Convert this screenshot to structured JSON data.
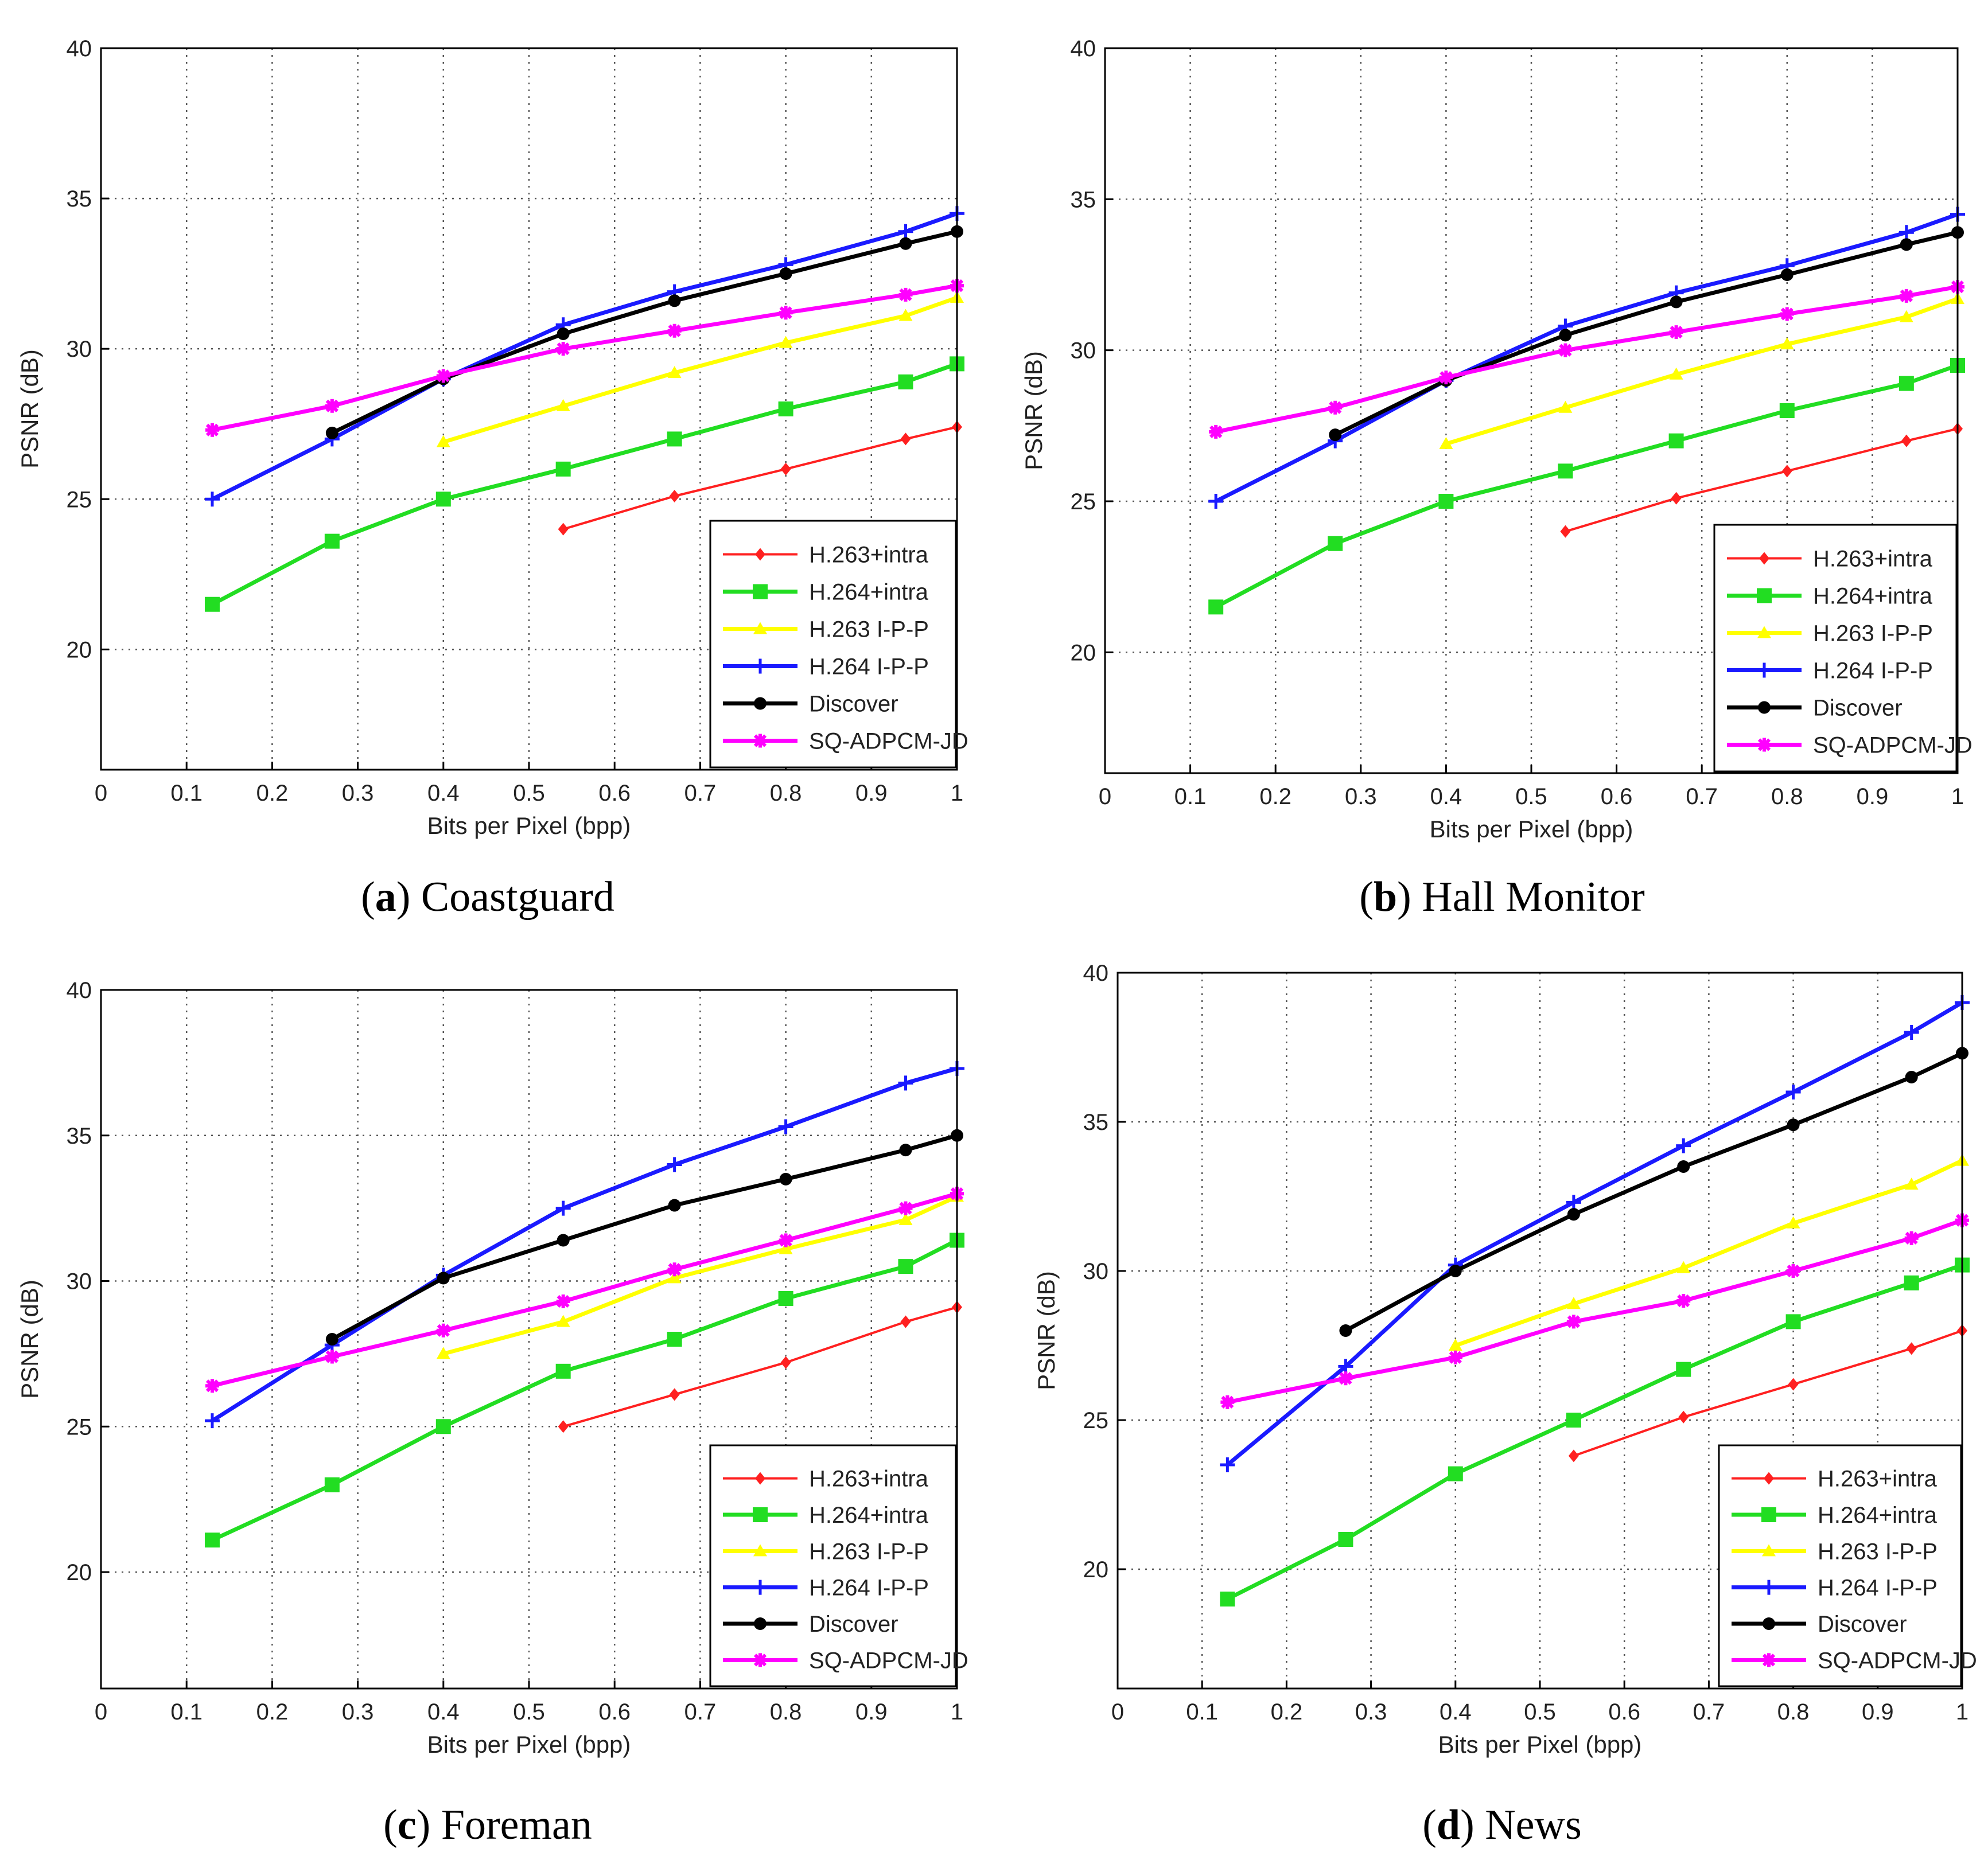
{
  "figure": {
    "x_axis_label": "Bits per Pixel (bpp)",
    "y_axis_label": "PSNR (dB)"
  },
  "legend_entries": [
    {
      "name": "H.263+intra",
      "color": "#ff2020",
      "marker": "diamond"
    },
    {
      "name": "H.264+intra",
      "color": "#22dd22",
      "marker": "square"
    },
    {
      "name": "H.263 I-P-P",
      "color": "#ffff00",
      "marker": "triangle"
    },
    {
      "name": "H.264 I-P-P",
      "color": "#1a1aff",
      "marker": "plus"
    },
    {
      "name": "Discover",
      "color": "#000000",
      "marker": "circle"
    },
    {
      "name": "SQ-ADPCM-JD",
      "color": "#ff00ff",
      "marker": "star"
    }
  ],
  "chart_data": [
    {
      "type": "line",
      "panel_letter": "a",
      "title": "Coastguard",
      "xlabel": "Bits per Pixel (bpp)",
      "ylabel": "PSNR (dB)",
      "xlim": [
        0,
        1
      ],
      "ylim": [
        16,
        40
      ],
      "xticks": [
        "0",
        "0.1",
        "0.2",
        "0.3",
        "0.4",
        "0.5",
        "0.6",
        "0.7",
        "0.8",
        "0.9",
        "1"
      ],
      "yticks": [
        "20",
        "25",
        "30",
        "35",
        "40"
      ],
      "grid": true,
      "legend_position": "bottom-right",
      "series": [
        {
          "name": "H.263+intra",
          "x": [
            0.54,
            0.67,
            0.8,
            0.94,
            1.0
          ],
          "y": [
            24.0,
            25.1,
            26.0,
            27.0,
            27.4
          ]
        },
        {
          "name": "H.264+intra",
          "x": [
            0.13,
            0.27,
            0.4,
            0.54,
            0.67,
            0.8,
            0.94,
            1.0
          ],
          "y": [
            21.5,
            23.6,
            25.0,
            26.0,
            27.0,
            28.0,
            28.9,
            29.5
          ]
        },
        {
          "name": "H.263 I-P-P",
          "x": [
            0.4,
            0.54,
            0.67,
            0.8,
            0.94,
            1.0
          ],
          "y": [
            26.9,
            28.1,
            29.2,
            30.2,
            31.1,
            31.7
          ]
        },
        {
          "name": "H.264 I-P-P",
          "x": [
            0.13,
            0.27,
            0.4,
            0.54,
            0.67,
            0.8,
            0.94,
            1.0
          ],
          "y": [
            25.0,
            27.0,
            29.0,
            30.8,
            31.9,
            32.8,
            33.9,
            34.5
          ]
        },
        {
          "name": "Discover",
          "x": [
            0.27,
            0.4,
            0.54,
            0.67,
            0.8,
            0.94,
            1.0
          ],
          "y": [
            27.2,
            29.0,
            30.5,
            31.6,
            32.5,
            33.5,
            33.9
          ]
        },
        {
          "name": "SQ-ADPCM-JD",
          "x": [
            0.13,
            0.27,
            0.4,
            0.54,
            0.67,
            0.8,
            0.94,
            1.0
          ],
          "y": [
            27.3,
            28.1,
            29.1,
            30.0,
            30.6,
            31.2,
            31.8,
            32.1
          ]
        }
      ]
    },
    {
      "type": "line",
      "panel_letter": "b",
      "title": "Hall Monitor",
      "xlabel": "Bits per Pixel (bpp)",
      "ylabel": "PSNR (dB)",
      "xlim": [
        0,
        1
      ],
      "ylim": [
        16,
        40
      ],
      "xticks": [
        "0",
        "0.1",
        "0.2",
        "0.3",
        "0.4",
        "0.5",
        "0.6",
        "0.7",
        "0.8",
        "0.9",
        "1"
      ],
      "yticks": [
        "20",
        "25",
        "30",
        "35",
        "40"
      ],
      "grid": true,
      "legend_position": "bottom-right",
      "series": [
        {
          "name": "H.263+intra",
          "x": [
            0.54,
            0.67,
            0.8,
            0.94,
            1.0
          ],
          "y": [
            24.0,
            25.1,
            26.0,
            27.0,
            27.4
          ]
        },
        {
          "name": "H.264+intra",
          "x": [
            0.13,
            0.27,
            0.4,
            0.54,
            0.67,
            0.8,
            0.94,
            1.0
          ],
          "y": [
            21.5,
            23.6,
            25.0,
            26.0,
            27.0,
            28.0,
            28.9,
            29.5
          ]
        },
        {
          "name": "H.263 I-P-P",
          "x": [
            0.4,
            0.54,
            0.67,
            0.8,
            0.94,
            1.0
          ],
          "y": [
            26.9,
            28.1,
            29.2,
            30.2,
            31.1,
            31.7
          ]
        },
        {
          "name": "H.264 I-P-P",
          "x": [
            0.13,
            0.27,
            0.4,
            0.54,
            0.67,
            0.8,
            0.94,
            1.0
          ],
          "y": [
            25.0,
            27.0,
            29.0,
            30.8,
            31.9,
            32.8,
            33.9,
            34.5
          ]
        },
        {
          "name": "Discover",
          "x": [
            0.27,
            0.4,
            0.54,
            0.67,
            0.8,
            0.94,
            1.0
          ],
          "y": [
            27.2,
            29.0,
            30.5,
            31.6,
            32.5,
            33.5,
            33.9
          ]
        },
        {
          "name": "SQ-ADPCM-JD",
          "x": [
            0.13,
            0.27,
            0.4,
            0.54,
            0.67,
            0.8,
            0.94,
            1.0
          ],
          "y": [
            27.3,
            28.1,
            29.1,
            30.0,
            30.6,
            31.2,
            31.8,
            32.1
          ]
        }
      ]
    },
    {
      "type": "line",
      "panel_letter": "c",
      "title": "Foreman",
      "xlabel": "Bits per Pixel (bpp)",
      "ylabel": "PSNR (dB)",
      "xlim": [
        0,
        1
      ],
      "ylim": [
        16,
        40
      ],
      "xticks": [
        "0",
        "0.1",
        "0.2",
        "0.3",
        "0.4",
        "0.5",
        "0.6",
        "0.7",
        "0.8",
        "0.9",
        "1"
      ],
      "yticks": [
        "20",
        "25",
        "30",
        "35",
        "40"
      ],
      "grid": true,
      "legend_position": "bottom-right",
      "series": [
        {
          "name": "H.263+intra",
          "x": [
            0.54,
            0.67,
            0.8,
            0.94,
            1.0
          ],
          "y": [
            25.0,
            26.1,
            27.2,
            28.6,
            29.1
          ]
        },
        {
          "name": "H.264+intra",
          "x": [
            0.13,
            0.27,
            0.4,
            0.54,
            0.67,
            0.8,
            0.94,
            1.0
          ],
          "y": [
            21.1,
            23.0,
            25.0,
            26.9,
            28.0,
            29.4,
            30.5,
            31.4
          ]
        },
        {
          "name": "H.263 I-P-P",
          "x": [
            0.4,
            0.54,
            0.67,
            0.8,
            0.94,
            1.0
          ],
          "y": [
            27.5,
            28.6,
            30.1,
            31.1,
            32.1,
            32.9
          ]
        },
        {
          "name": "H.264 I-P-P",
          "x": [
            0.13,
            0.27,
            0.4,
            0.54,
            0.67,
            0.8,
            0.94,
            1.0
          ],
          "y": [
            25.2,
            27.8,
            30.2,
            32.5,
            34.0,
            35.3,
            36.8,
            37.3
          ]
        },
        {
          "name": "Discover",
          "x": [
            0.27,
            0.4,
            0.54,
            0.67,
            0.8,
            0.94,
            1.0
          ],
          "y": [
            28.0,
            30.1,
            31.4,
            32.6,
            33.5,
            34.5,
            35.0
          ]
        },
        {
          "name": "SQ-ADPCM-JD",
          "x": [
            0.13,
            0.27,
            0.4,
            0.54,
            0.67,
            0.8,
            0.94,
            1.0
          ],
          "y": [
            26.4,
            27.4,
            28.3,
            29.3,
            30.4,
            31.4,
            32.5,
            33.0
          ]
        }
      ]
    },
    {
      "type": "line",
      "panel_letter": "d",
      "title": "News",
      "xlabel": "Bits per Pixel (bpp)",
      "ylabel": "PSNR (dB)",
      "xlim": [
        0,
        1
      ],
      "ylim": [
        16,
        40
      ],
      "xticks": [
        "0",
        "0.1",
        "0.2",
        "0.3",
        "0.4",
        "0.5",
        "0.6",
        "0.7",
        "0.8",
        "0.9",
        "1"
      ],
      "yticks": [
        "20",
        "25",
        "30",
        "35",
        "40"
      ],
      "grid": true,
      "legend_position": "bottom-right",
      "series": [
        {
          "name": "H.263+intra",
          "x": [
            0.54,
            0.67,
            0.8,
            0.94,
            1.0
          ],
          "y": [
            23.8,
            25.1,
            26.2,
            27.4,
            28.0
          ]
        },
        {
          "name": "H.264+intra",
          "x": [
            0.13,
            0.27,
            0.4,
            0.54,
            0.67,
            0.8,
            0.94,
            1.0
          ],
          "y": [
            19.0,
            21.0,
            23.2,
            25.0,
            26.7,
            28.3,
            29.6,
            30.2
          ]
        },
        {
          "name": "H.263 I-P-P",
          "x": [
            0.4,
            0.54,
            0.67,
            0.8,
            0.94,
            1.0
          ],
          "y": [
            27.5,
            28.9,
            30.1,
            31.6,
            32.9,
            33.7
          ]
        },
        {
          "name": "H.264 I-P-P",
          "x": [
            0.13,
            0.27,
            0.4,
            0.54,
            0.67,
            0.8,
            0.94,
            1.0
          ],
          "y": [
            23.5,
            26.8,
            30.2,
            32.3,
            34.2,
            36.0,
            38.0,
            39.0
          ]
        },
        {
          "name": "Discover",
          "x": [
            0.27,
            0.4,
            0.54,
            0.67,
            0.8,
            0.94,
            1.0
          ],
          "y": [
            28.0,
            30.0,
            31.9,
            33.5,
            34.9,
            36.5,
            37.3
          ]
        },
        {
          "name": "SQ-ADPCM-JD",
          "x": [
            0.13,
            0.27,
            0.4,
            0.54,
            0.67,
            0.8,
            0.94,
            1.0
          ],
          "y": [
            25.6,
            26.4,
            27.1,
            28.3,
            29.0,
            30.0,
            31.1,
            31.7
          ]
        }
      ]
    }
  ]
}
